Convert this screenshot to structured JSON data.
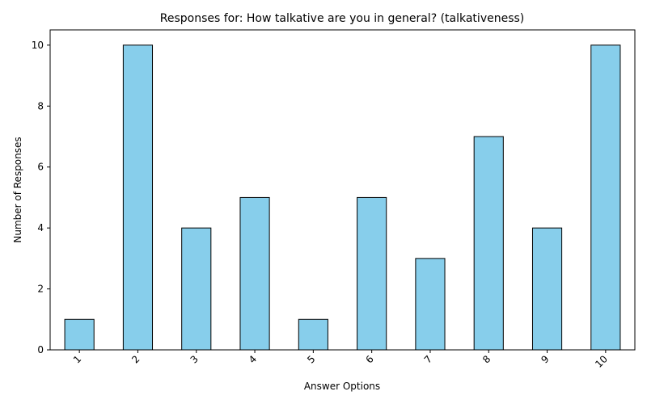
{
  "chart_data": {
    "type": "bar",
    "title": "Responses for: How talkative are you in general? (talkativeness)",
    "xlabel": "Answer Options",
    "ylabel": "Number of Responses",
    "categories": [
      "1",
      "2",
      "3",
      "4",
      "5",
      "6",
      "7",
      "8",
      "9",
      "10"
    ],
    "values": [
      1,
      10,
      4,
      5,
      1,
      5,
      3,
      7,
      4,
      10
    ],
    "ylim": [
      0,
      10.5
    ],
    "yticks": [
      "0",
      "2",
      "4",
      "6",
      "8",
      "10"
    ],
    "bar_color": "#87ceeb",
    "edge_color": "#000000",
    "grid": false,
    "legend": "none"
  }
}
